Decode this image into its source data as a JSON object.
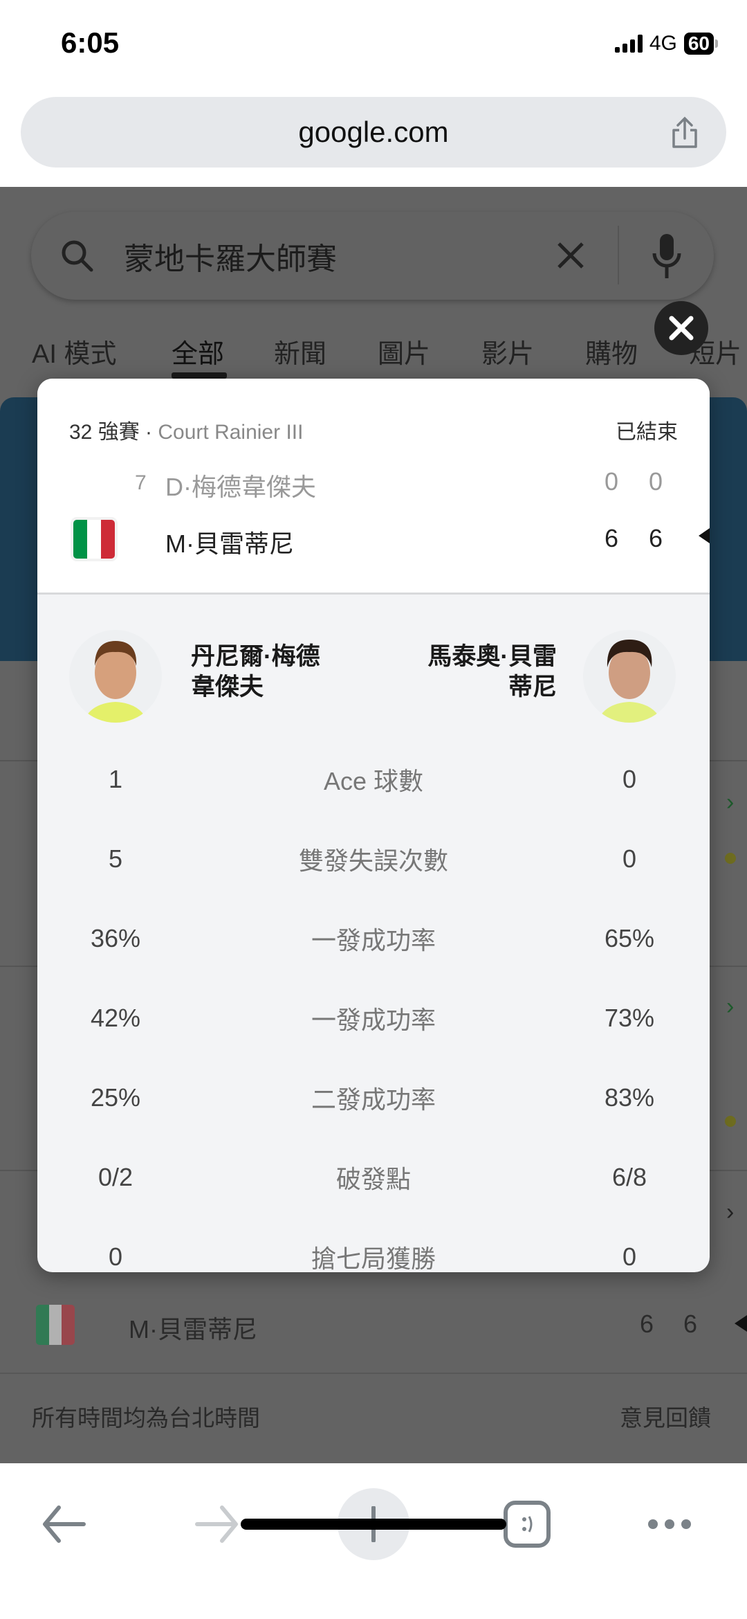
{
  "status_bar": {
    "time": "6:05",
    "network": "4G",
    "battery": "60"
  },
  "browser": {
    "url": "google.com"
  },
  "search": {
    "query": "蒙地卡羅大師賽"
  },
  "tabs": [
    {
      "label": "AI 模式"
    },
    {
      "label": "全部",
      "active": true
    },
    {
      "label": "新聞"
    },
    {
      "label": "圖片"
    },
    {
      "label": "影片"
    },
    {
      "label": "購物"
    },
    {
      "label": "短片"
    }
  ],
  "modal": {
    "round": "32 強賽 · ",
    "court": "Court Rainier III",
    "status": "已結束",
    "players": [
      {
        "seed": "7",
        "short_name": "D·梅德韋傑夫",
        "sets": [
          "0",
          "0"
        ],
        "full_name_line1": "丹尼爾·梅德",
        "full_name_line2": "韋傑夫"
      },
      {
        "seed": "",
        "short_name": "M·貝雷蒂尼",
        "sets": [
          "6",
          "6"
        ],
        "flag": "italy",
        "full_name_line1": "馬泰奧·貝雷",
        "full_name_line2": "蒂尼",
        "winner": true
      }
    ],
    "stats": [
      {
        "label": "Ace 球數",
        "left": "1",
        "right": "0"
      },
      {
        "label": "雙發失誤次數",
        "left": "5",
        "right": "0"
      },
      {
        "label": "一發成功率",
        "left": "36%",
        "right": "65%"
      },
      {
        "label": "一發成功率",
        "left": "42%",
        "right": "73%"
      },
      {
        "label": "二發成功率",
        "left": "25%",
        "right": "83%"
      },
      {
        "label": "破發點",
        "left": "0/2",
        "right": "6/8"
      },
      {
        "label": "搶七局獲勝",
        "left": "0",
        "right": "0"
      }
    ]
  },
  "background": {
    "player": "M·貝雷蒂尼",
    "sets": [
      "6",
      "6"
    ],
    "footer_left": "所有時間均為台北時間",
    "footer_right": "意見回饋"
  },
  "colors": {
    "accent_blue": "#1b3c52",
    "italy_green": "#009246",
    "italy_red": "#ce2b37"
  }
}
